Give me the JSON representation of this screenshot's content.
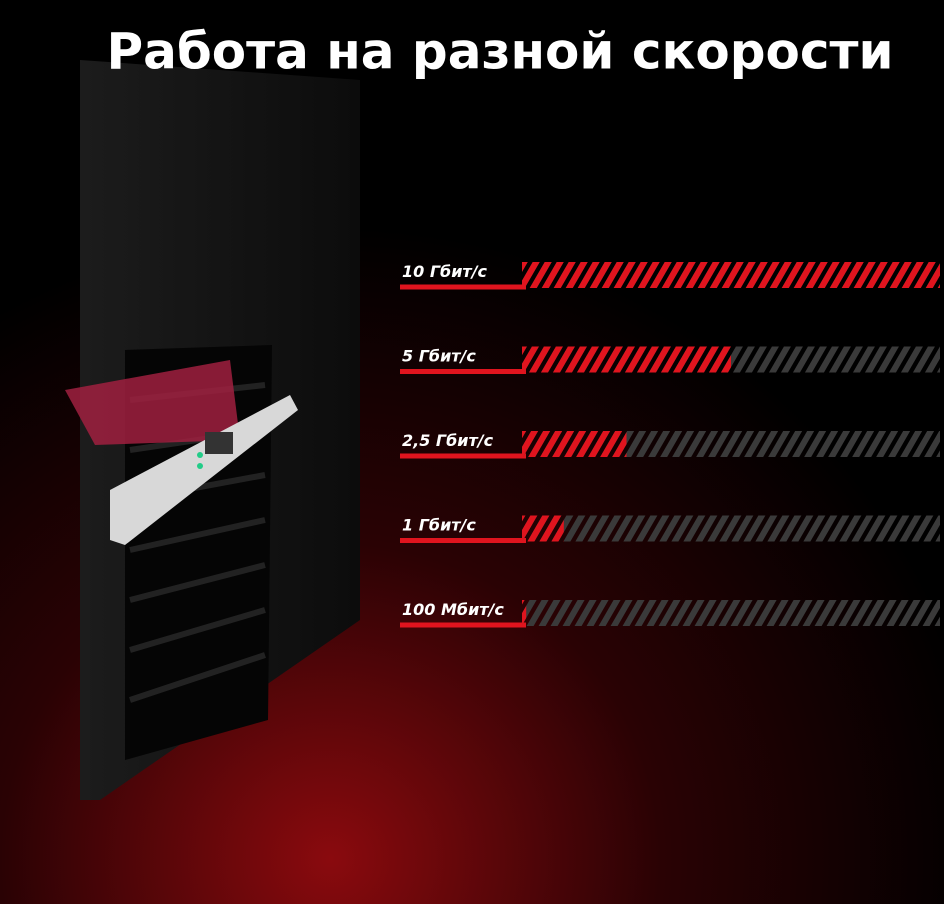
{
  "chart_data": {
    "type": "bar",
    "orientation": "horizontal",
    "title": "Работа на разной скорости",
    "categories": [
      "10 Гбит/с",
      "5 Гбит/с",
      "2,5 Гбит/с",
      "1 Гбит/с",
      "100 Мбит/с"
    ],
    "values": [
      10,
      5,
      2.5,
      1,
      0.1
    ],
    "xlim": [
      0,
      10
    ],
    "color": "#e0141e",
    "track_color": "#3a3a3a"
  }
}
